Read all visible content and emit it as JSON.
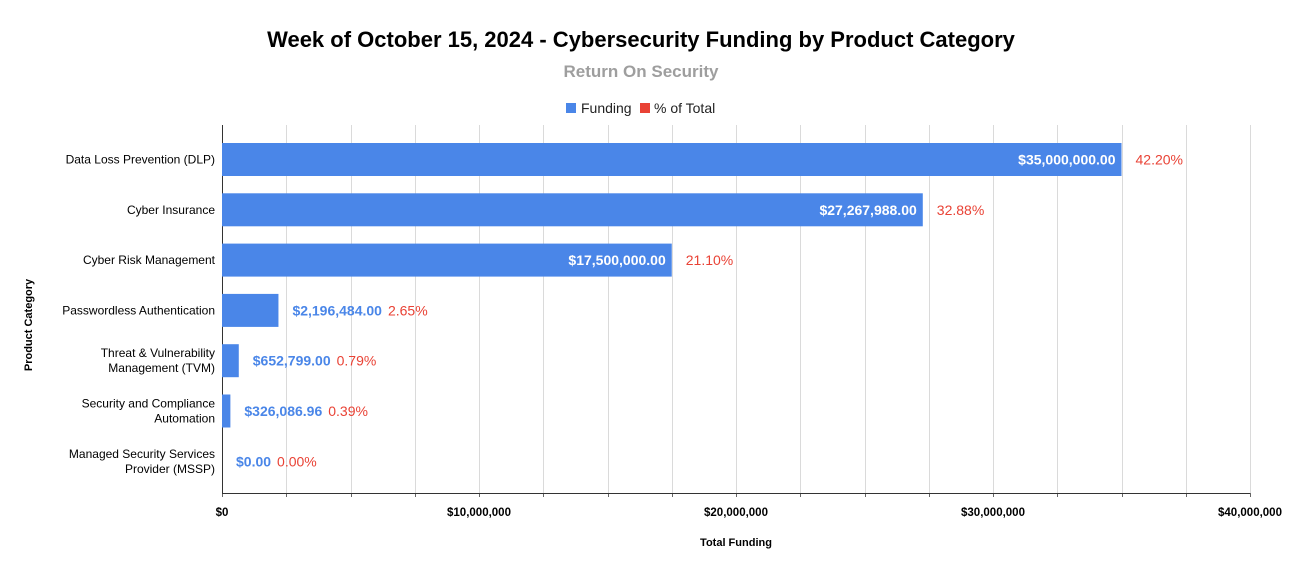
{
  "chart_data": {
    "type": "bar",
    "orientation": "horizontal",
    "title": "Week of October 15, 2024 - Cybersecurity Funding by Product Category",
    "subtitle": "Return On Security",
    "xlabel": "Total Funding",
    "ylabel": "Product Category",
    "xlim": [
      0,
      40000000
    ],
    "x_ticks": [
      0,
      10000000,
      20000000,
      30000000,
      40000000
    ],
    "x_tick_labels": [
      "$0",
      "$10,000,000",
      "$20,000,000",
      "$30,000,000",
      "$40,000,000"
    ],
    "legend": {
      "position": "top",
      "entries": [
        {
          "name": "Funding",
          "color": "#4a86e8"
        },
        {
          "name": "% of Total",
          "color": "#e94235"
        }
      ]
    },
    "categories": [
      [
        "Data Loss Prevention (DLP)"
      ],
      [
        "Cyber Insurance"
      ],
      [
        "Cyber Risk Management"
      ],
      [
        "Passwordless Authentication"
      ],
      [
        "Threat & Vulnerability",
        "Management (TVM)"
      ],
      [
        "Security and Compliance",
        "Automation"
      ],
      [
        "Managed Security Services",
        "Provider (MSSP)"
      ]
    ],
    "series": [
      {
        "name": "Funding",
        "color": "#4a86e8",
        "values": [
          35000000,
          27267988,
          17500000,
          2196484,
          652799,
          326086.96,
          0
        ],
        "labels": [
          "$35,000,000.00",
          "$27,267,988.00",
          "$17,500,000.00",
          "$2,196,484.00",
          "$652,799.00",
          "$326,086.96",
          "$0.00"
        ]
      },
      {
        "name": "% of Total",
        "color": "#e94235",
        "values": [
          42.2,
          32.88,
          21.1,
          2.65,
          0.79,
          0.39,
          0.0
        ],
        "labels": [
          "42.20%",
          "32.88%",
          "21.10%",
          "2.65%",
          "0.79%",
          "0.39%",
          "0.00%"
        ]
      }
    ]
  }
}
